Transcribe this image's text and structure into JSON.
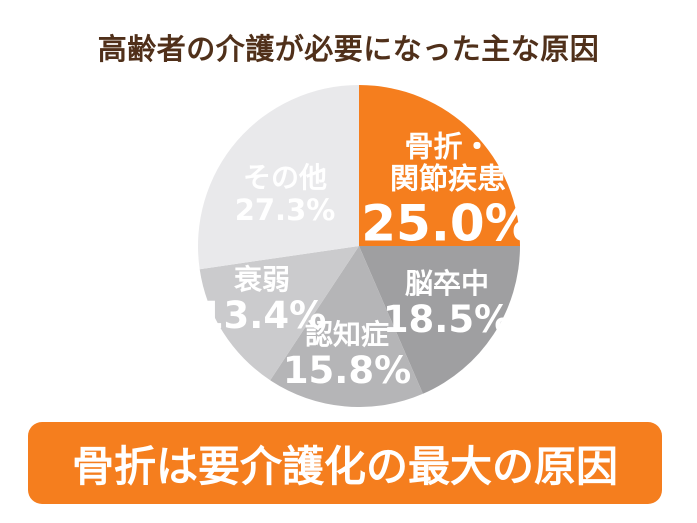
{
  "title": "高齢者の介護が必要になった主な原因",
  "banner": {
    "text": "骨折は要介護化の最大の原因"
  },
  "colors": {
    "background": "#FFFFFF",
    "accent_orange": "#F57E1E",
    "title_brown": "#50301A",
    "label_white": "#FFFFFF"
  },
  "chart_data": {
    "type": "pie",
    "title": "高齢者の介護が必要になった主な原因",
    "unit": "%",
    "direction": "clockwise",
    "start_angle_deg": 0,
    "legend_position": "none",
    "label_text_color": "#FFFFFF",
    "slices": [
      {
        "label": "骨折・関節疾患",
        "label_lines": [
          "骨折・",
          "関節疾患"
        ],
        "value": 25.0,
        "percent_label": "25.0%",
        "color": "#F57E1E"
      },
      {
        "label": "脳卒中",
        "label_lines": [
          "脳卒中"
        ],
        "value": 18.5,
        "percent_label": "18.5%",
        "color": "#9F9FA1"
      },
      {
        "label": "認知症",
        "label_lines": [
          "認知症"
        ],
        "value": 15.8,
        "percent_label": "15.8%",
        "color": "#B5B5B7"
      },
      {
        "label": "衰弱",
        "label_lines": [
          "衰弱"
        ],
        "value": 13.4,
        "percent_label": "13.4%",
        "color": "#CBCBCD"
      },
      {
        "label": "その他",
        "label_lines": [
          "その他"
        ],
        "value": 27.3,
        "percent_label": "27.3%",
        "color": "#E9E9EB"
      }
    ]
  }
}
